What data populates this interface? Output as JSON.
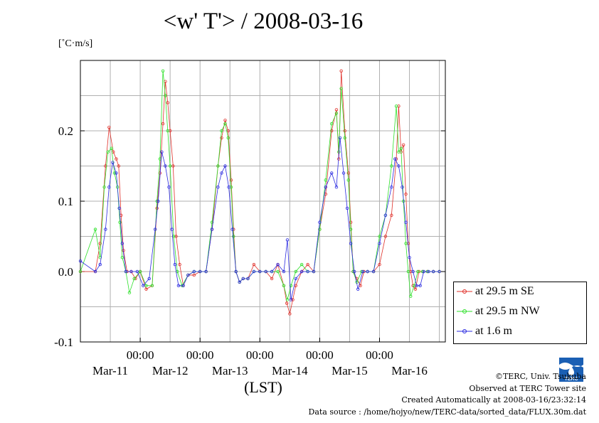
{
  "title": "<w' T'> / 2008-03-16",
  "chart_data": {
    "type": "line",
    "title": "<w' T'> / 2008-03-16",
    "ylabel": "[˚C·m/s]",
    "xlabel": "(LST)",
    "ylim": [
      -0.1,
      0.3
    ],
    "xlim": [
      "2008-03-10 00:00",
      "2008-03-17 00:00"
    ],
    "yticks": [
      "-0.1",
      "0.0",
      "0.1",
      "0.2"
    ],
    "xticks_time": [
      "00:00",
      "00:00",
      "00:00",
      "00:00",
      "00:00"
    ],
    "xticks_date": [
      "Mar-11",
      "Mar-12",
      "Mar-13",
      "Mar-14",
      "Mar-15",
      "Mar-16"
    ],
    "grid": true,
    "legend_position": "right-bottom",
    "series": [
      {
        "name": "at 29.5 m SE",
        "color": "#e0302a",
        "x": [
          0.0,
          0.25,
          0.33,
          0.42,
          0.48,
          0.55,
          0.6,
          0.64,
          0.68,
          0.72,
          0.78,
          0.85,
          0.92,
          1.0,
          1.1,
          1.2,
          1.28,
          1.33,
          1.38,
          1.42,
          1.46,
          1.5,
          1.55,
          1.6,
          1.66,
          1.72,
          1.8,
          1.9,
          2.0,
          2.1,
          2.2,
          2.3,
          2.36,
          2.42,
          2.47,
          2.52,
          2.56,
          2.6,
          2.66,
          2.72,
          2.8,
          2.9,
          3.0,
          3.1,
          3.2,
          3.3,
          3.4,
          3.45,
          3.5,
          3.55,
          3.6,
          3.7,
          3.8,
          3.9,
          4.0,
          4.1,
          4.2,
          4.28,
          4.32,
          4.36,
          4.42,
          4.48,
          4.52,
          4.56,
          4.62,
          4.68,
          4.74,
          4.8,
          4.9,
          5.0,
          5.1,
          5.2,
          5.28,
          5.32,
          5.36,
          5.4,
          5.44,
          5.48,
          5.52,
          5.56,
          5.6,
          5.66,
          5.72,
          5.8,
          5.9,
          6.0
        ],
        "values": [
          0.0,
          0.0,
          0.04,
          0.15,
          0.205,
          0.17,
          0.16,
          0.15,
          0.08,
          0.03,
          0.0,
          0.0,
          -0.01,
          0.0,
          -0.025,
          -0.02,
          0.09,
          0.14,
          0.21,
          0.27,
          0.24,
          0.2,
          0.15,
          0.05,
          0.01,
          -0.02,
          -0.005,
          -0.005,
          0.0,
          0.0,
          0.06,
          0.15,
          0.19,
          0.215,
          0.2,
          0.13,
          0.06,
          0.0,
          -0.015,
          -0.01,
          -0.01,
          0.01,
          0.0,
          0.0,
          -0.01,
          0.01,
          -0.02,
          -0.045,
          -0.06,
          -0.04,
          -0.02,
          0.0,
          0.01,
          0.0,
          0.06,
          0.11,
          0.2,
          0.23,
          0.16,
          0.285,
          0.2,
          0.14,
          0.07,
          0.0,
          -0.01,
          -0.02,
          0.0,
          0.0,
          0.0,
          0.01,
          0.05,
          0.08,
          0.16,
          0.235,
          0.17,
          0.18,
          0.11,
          0.04,
          0.0,
          -0.02,
          -0.025,
          0.0,
          0.0,
          0.0,
          0.0,
          0.0
        ]
      },
      {
        "name": "at 29.5 m NW",
        "color": "#2ee02a",
        "x": [
          0.0,
          0.25,
          0.33,
          0.4,
          0.46,
          0.52,
          0.57,
          0.62,
          0.66,
          0.7,
          0.76,
          0.82,
          0.9,
          1.0,
          1.1,
          1.2,
          1.28,
          1.33,
          1.38,
          1.42,
          1.46,
          1.5,
          1.56,
          1.62,
          1.7,
          1.8,
          1.9,
          2.0,
          2.1,
          2.2,
          2.3,
          2.36,
          2.42,
          2.47,
          2.52,
          2.56,
          2.6,
          2.66,
          2.72,
          2.8,
          2.9,
          3.0,
          3.1,
          3.2,
          3.3,
          3.4,
          3.46,
          3.52,
          3.6,
          3.7,
          3.8,
          3.9,
          4.0,
          4.1,
          4.2,
          4.28,
          4.32,
          4.36,
          4.42,
          4.48,
          4.52,
          4.56,
          4.62,
          4.7,
          4.8,
          4.9,
          5.0,
          5.1,
          5.2,
          5.28,
          5.32,
          5.36,
          5.4,
          5.44,
          5.48,
          5.52,
          5.58,
          5.64,
          5.72,
          5.8,
          5.9,
          6.0
        ],
        "values": [
          0.0,
          0.06,
          0.02,
          0.12,
          0.17,
          0.175,
          0.14,
          0.12,
          0.07,
          0.02,
          0.0,
          -0.03,
          -0.01,
          0.0,
          -0.02,
          -0.02,
          0.1,
          0.16,
          0.285,
          0.25,
          0.2,
          0.15,
          0.05,
          0.0,
          -0.02,
          -0.005,
          0.0,
          0.0,
          0.0,
          0.07,
          0.15,
          0.2,
          0.21,
          0.19,
          0.12,
          0.05,
          0.0,
          -0.015,
          -0.01,
          -0.01,
          0.0,
          0.0,
          0.0,
          0.0,
          0.0,
          -0.02,
          -0.04,
          -0.02,
          0.0,
          0.01,
          0.0,
          0.0,
          0.06,
          0.13,
          0.21,
          0.225,
          0.17,
          0.26,
          0.19,
          0.13,
          0.06,
          0.0,
          -0.015,
          0.0,
          0.0,
          0.0,
          0.05,
          0.08,
          0.15,
          0.235,
          0.17,
          0.175,
          0.1,
          0.04,
          0.0,
          -0.035,
          -0.02,
          0.0,
          0.0,
          0.0,
          0.0,
          0.0
        ]
      },
      {
        "name": "at 1.6 m",
        "color": "#2a2ae0",
        "x": [
          0.0,
          0.25,
          0.33,
          0.42,
          0.48,
          0.54,
          0.6,
          0.65,
          0.7,
          0.76,
          0.85,
          0.95,
          1.05,
          1.15,
          1.25,
          1.3,
          1.36,
          1.42,
          1.48,
          1.53,
          1.58,
          1.64,
          1.72,
          1.8,
          1.9,
          2.0,
          2.1,
          2.2,
          2.3,
          2.36,
          2.42,
          2.48,
          2.54,
          2.6,
          2.66,
          2.72,
          2.8,
          2.9,
          3.0,
          3.1,
          3.2,
          3.3,
          3.4,
          3.46,
          3.52,
          3.6,
          3.7,
          3.8,
          3.9,
          4.0,
          4.1,
          4.2,
          4.28,
          4.34,
          4.4,
          4.46,
          4.52,
          4.58,
          4.64,
          4.72,
          4.8,
          4.9,
          5.0,
          5.1,
          5.2,
          5.26,
          5.32,
          5.38,
          5.44,
          5.5,
          5.56,
          5.62,
          5.68,
          5.74,
          5.82,
          5.9,
          6.0
        ],
        "values": [
          0.015,
          0.0,
          0.01,
          0.06,
          0.12,
          0.155,
          0.14,
          0.09,
          0.04,
          0.0,
          0.0,
          0.0,
          -0.02,
          -0.01,
          0.06,
          0.1,
          0.17,
          0.15,
          0.12,
          0.06,
          0.01,
          -0.02,
          -0.02,
          -0.005,
          0.0,
          0.0,
          0.0,
          0.06,
          0.12,
          0.14,
          0.15,
          0.12,
          0.06,
          0.0,
          -0.015,
          -0.01,
          -0.01,
          0.0,
          0.0,
          0.0,
          0.0,
          0.01,
          0.0,
          0.045,
          -0.04,
          -0.01,
          0.0,
          0.0,
          0.0,
          0.07,
          0.12,
          0.14,
          0.12,
          0.19,
          0.14,
          0.09,
          0.04,
          0.0,
          -0.025,
          0.0,
          0.0,
          0.0,
          0.04,
          0.08,
          0.12,
          0.16,
          0.15,
          0.12,
          0.07,
          0.02,
          0.0,
          -0.02,
          -0.02,
          0.0,
          0.0,
          0.0,
          0.0
        ]
      }
    ]
  },
  "legend": {
    "items": [
      {
        "label": "at 29.5 m SE",
        "color": "#e0302a"
      },
      {
        "label": "at 29.5 m NW",
        "color": "#2ee02a"
      },
      {
        "label": "at 1.6 m",
        "color": "#2a2ae0"
      }
    ]
  },
  "footer": {
    "copyright": "©TERC, Univ. Tsukuba",
    "observed": "Observed at TERC Tower site",
    "created": "Created Automatically at 2008-03-16/23:32:14",
    "source": "Data source : /home/hojyo/new/TERC-data/sorted_data/FLUX.30m.dat"
  },
  "logo_icon": "terc-logo-icon",
  "logo_text": "TERC"
}
